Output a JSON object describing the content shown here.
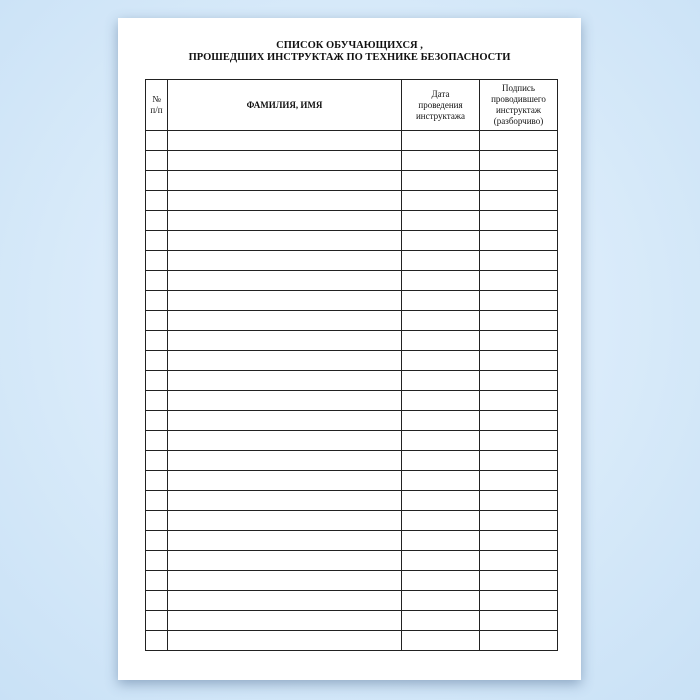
{
  "document": {
    "title_line1": "СПИСОК ОБУЧАЮЩИХСЯ ,",
    "title_line2": "ПРОШЕДШИХ ИНСТРУКТАЖ ПО ТЕХНИКЕ БЕЗОПАСНОСТИ",
    "table": {
      "headers": [
        {
          "line1": "№",
          "line2": "п/п"
        },
        {
          "line1": "ФАМИЛИЯ, ИМЯ"
        },
        {
          "line1": "Дата",
          "line2": "проведения",
          "line3": "инструктажа"
        },
        {
          "line1": "Подпись",
          "line2": "проводившего",
          "line3": "инструктаж",
          "line4": "(разборчиво)"
        }
      ],
      "empty_rows": 26
    }
  }
}
